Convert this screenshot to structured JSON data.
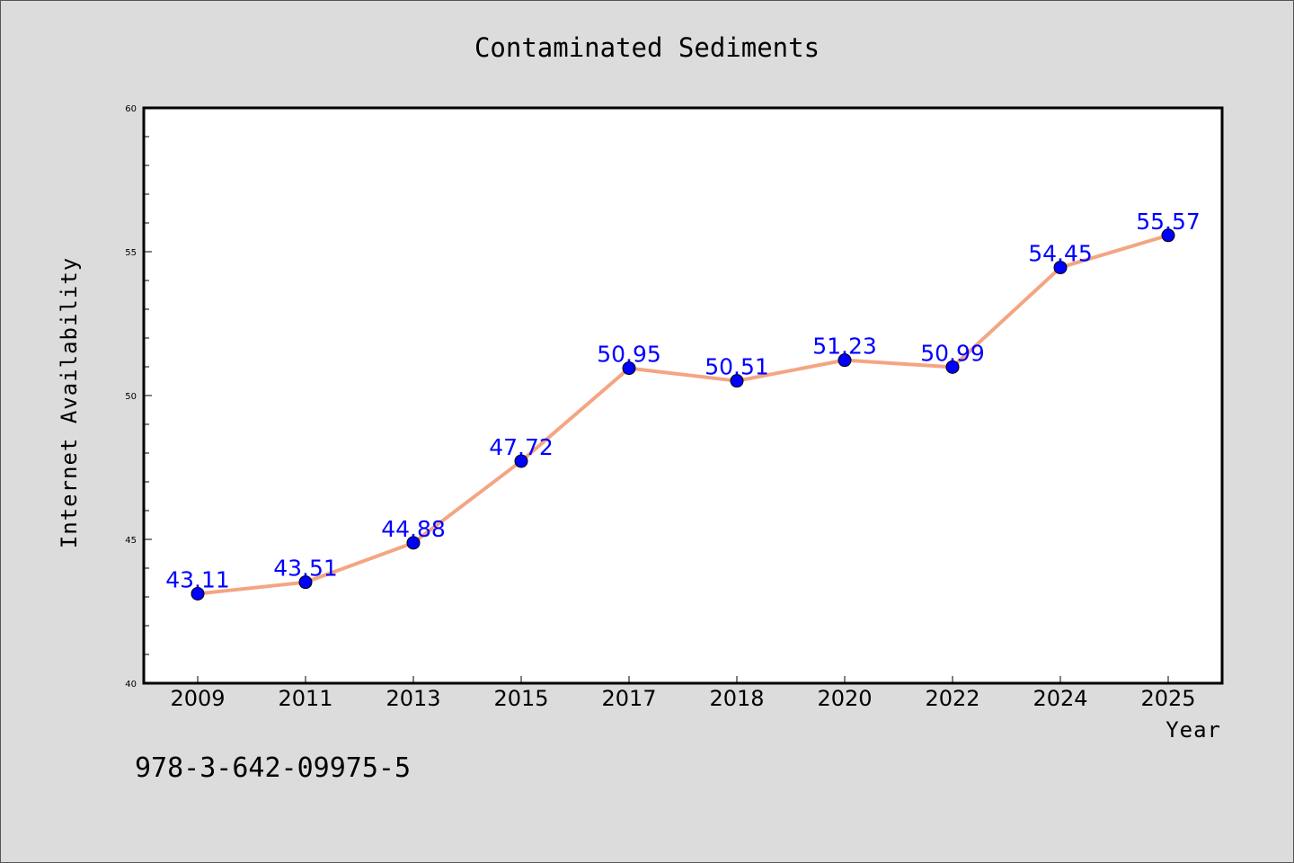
{
  "chart_data": {
    "type": "line",
    "title": "Contaminated Sediments",
    "xlabel": "Year",
    "ylabel": "Internet Availability",
    "categories": [
      "2009",
      "2011",
      "2013",
      "2015",
      "2017",
      "2018",
      "2020",
      "2022",
      "2024",
      "2025"
    ],
    "series": [
      {
        "values": [
          43.11,
          43.51,
          44.88,
          47.72,
          50.95,
          50.51,
          51.23,
          50.99,
          54.45,
          55.57
        ],
        "labels": [
          "43.11",
          "43.51",
          "44.88",
          "47.72",
          "50.95",
          "50.51",
          "51.23",
          "50.99",
          "54.45",
          "55.57"
        ],
        "line_color": "#f4a582",
        "marker_color": "#0000ff",
        "label_color": "#0000ff"
      }
    ],
    "ylim": [
      40,
      60
    ],
    "yticks": [
      "40",
      "45",
      "50",
      "55",
      "60"
    ],
    "grid": false,
    "legend": "none"
  },
  "footnote": "978-3-642-09975-5"
}
